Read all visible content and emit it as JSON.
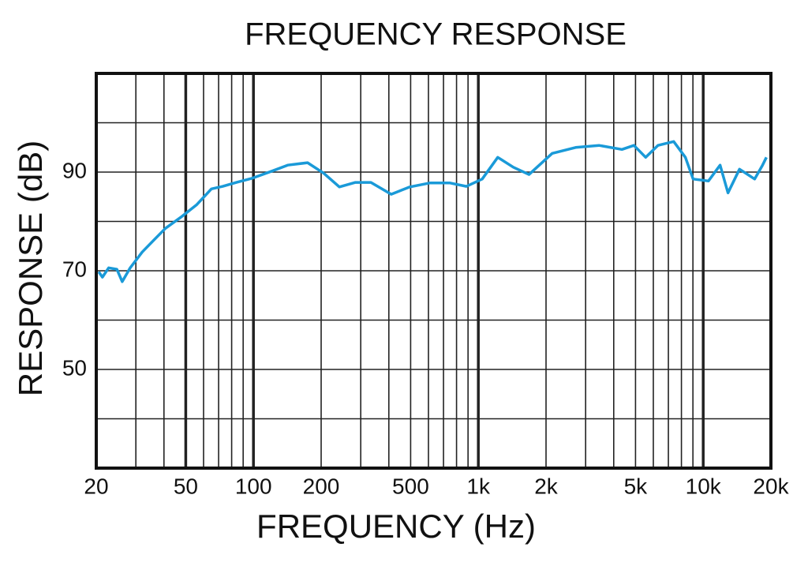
{
  "chart_data": {
    "type": "line",
    "title": "FREQUENCY RESPONSE",
    "x_label": "FREQUENCY (Hz)",
    "y_label": "RESPONSE (dB)",
    "x_scale": "log",
    "xlim": [
      20,
      20000
    ],
    "ylim": [
      30,
      110
    ],
    "xticks": [
      20,
      50,
      100,
      200,
      500,
      {
        "value": 1000,
        "label": "1k"
      },
      {
        "value": 2000,
        "label": "2k"
      },
      {
        "value": 5000,
        "label": "5k"
      },
      {
        "value": 10000,
        "label": "10k"
      },
      {
        "value": 20000,
        "label": "20k"
      }
    ],
    "yticks": [
      50,
      70,
      90
    ],
    "x_grid": [
      30,
      40,
      50,
      60,
      70,
      80,
      90,
      100,
      200,
      300,
      400,
      500,
      600,
      700,
      800,
      900,
      1000,
      2000,
      3000,
      4000,
      5000,
      6000,
      7000,
      8000,
      9000,
      10000
    ],
    "x_grid_major": [
      50,
      100,
      1000,
      10000
    ],
    "y_grid": [
      40,
      50,
      60,
      70,
      80,
      90,
      100
    ],
    "grid": true,
    "series": [
      {
        "name": "Response",
        "color": "#1a9ad8",
        "x": [
          20.5,
          21.3,
          22.7,
          24.7,
          26.1,
          28.3,
          32,
          36,
          40.6,
          48,
          56,
          65,
          73,
          84,
          98,
          121,
          142,
          174,
          205,
          241,
          284,
          333,
          410,
          496,
          608,
          749,
          885,
          1040,
          1220,
          1430,
          1680,
          2130,
          2710,
          3440,
          4350,
          4920,
          5550,
          6290,
          7390,
          8330,
          9020,
          10550,
          11890,
          12890,
          14500,
          16940,
          18360,
          19100
        ],
        "values": [
          69.8,
          68.7,
          70.6,
          70.3,
          67.8,
          70.6,
          73.8,
          76.2,
          78.6,
          81,
          83.4,
          86.6,
          87.1,
          87.9,
          88.7,
          90.2,
          91.4,
          91.9,
          89.8,
          87,
          87.9,
          87.9,
          85.5,
          87,
          87.8,
          87.8,
          87.1,
          88.6,
          93,
          91,
          89.5,
          93.8,
          95,
          95.4,
          94.6,
          95.4,
          93,
          95.4,
          96.2,
          93,
          88.6,
          88.2,
          91.4,
          85.8,
          90.6,
          88.6,
          91.4,
          93
        ]
      }
    ]
  }
}
